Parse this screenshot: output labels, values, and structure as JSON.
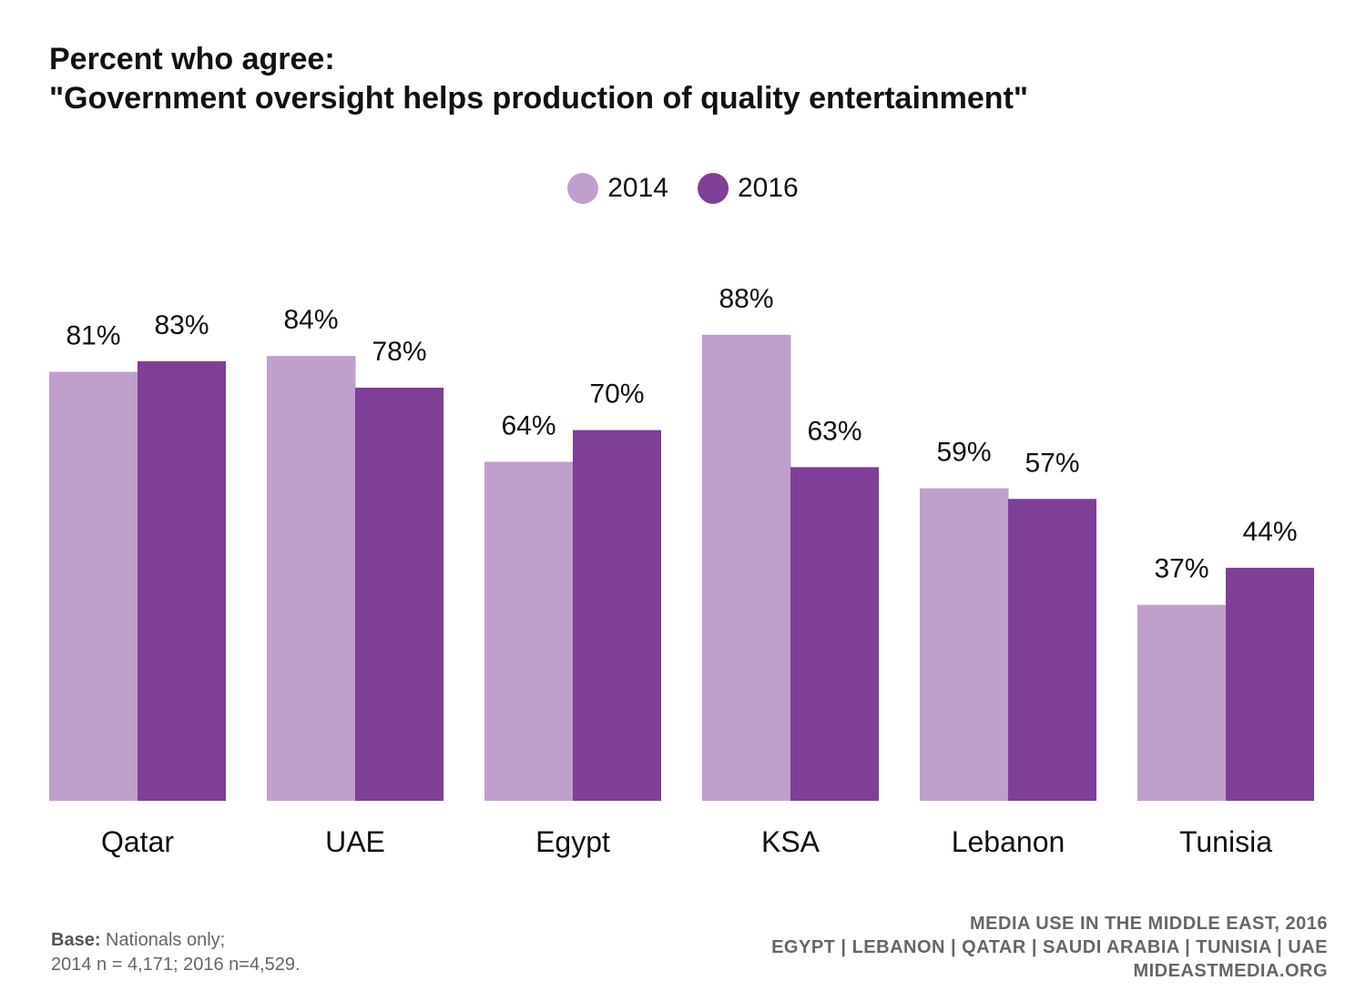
{
  "title_line1": "Percent who agree:",
  "title_line2": "\"Government oversight helps production of quality entertainment\"",
  "chart_data": {
    "type": "bar",
    "categories": [
      "Qatar",
      "UAE",
      "Egypt",
      "KSA",
      "Lebanon",
      "Tunisia"
    ],
    "series": [
      {
        "name": "2014",
        "color": "#bf9fcb",
        "values": [
          81,
          84,
          64,
          88,
          59,
          37
        ]
      },
      {
        "name": "2016",
        "color": "#7f3f96",
        "values": [
          83,
          78,
          70,
          63,
          57,
          44
        ]
      }
    ],
    "data_labels": [
      [
        "81%",
        "84%",
        "64%",
        "88%",
        "59%",
        "37%"
      ],
      [
        "83%",
        "78%",
        "70%",
        "63%",
        "57%",
        "44%"
      ]
    ],
    "ylim": [
      0,
      100
    ],
    "legend_position": "top-center",
    "grid": false
  },
  "footer": {
    "base_label": "Base:",
    "base_text": "Nationals only;",
    "sample_text": "2014 n = 4,171; 2016 n=4,529.",
    "source_line1": "MEDIA USE IN THE MIDDLE EAST, 2016",
    "source_line2": "EGYPT | LEBANON | QATAR | SAUDI ARABIA | TUNISIA | UAE",
    "source_line3": "MIDEASTMEDIA.ORG"
  }
}
